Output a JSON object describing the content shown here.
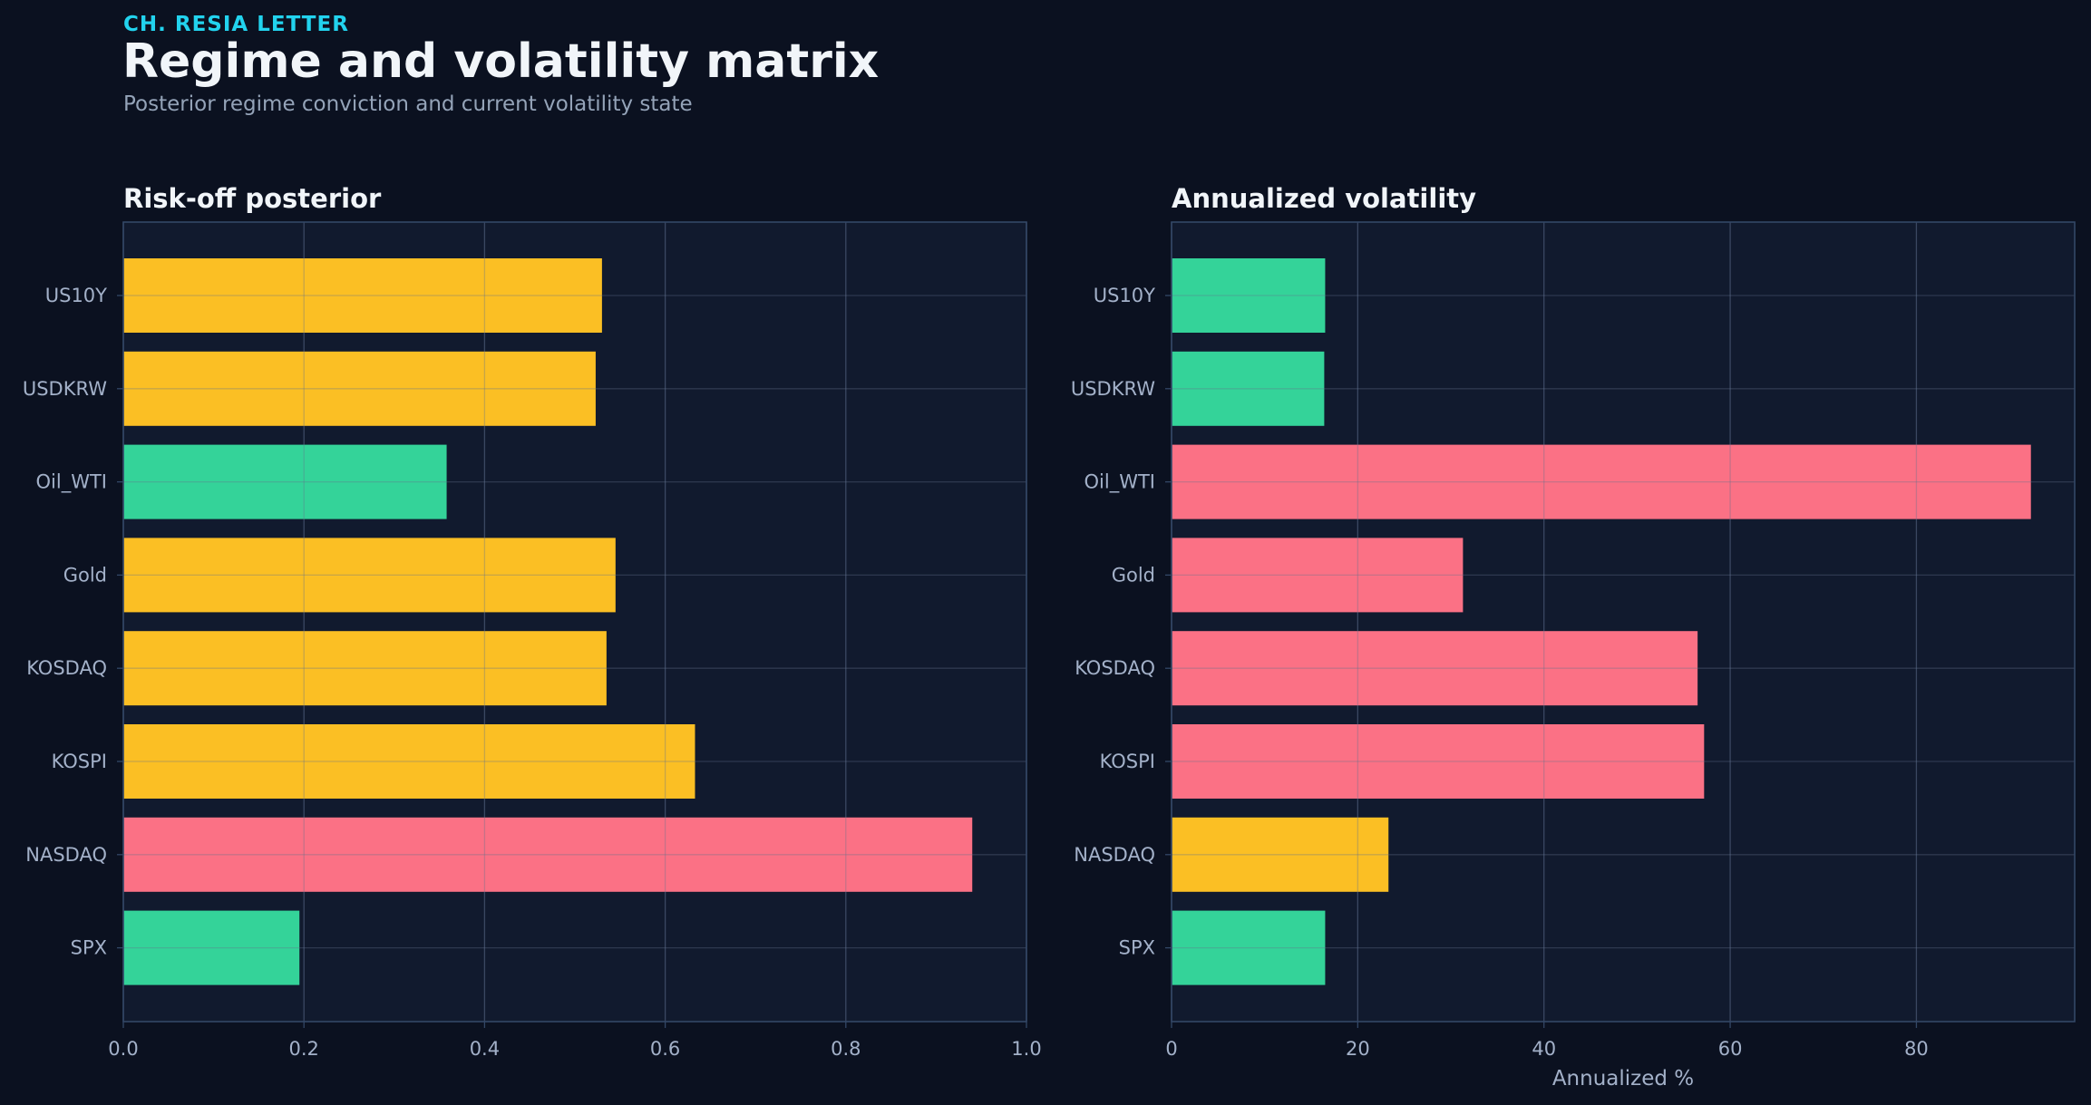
{
  "header": {
    "kicker": "CH. RESIA LETTER",
    "title": "Regime and volatility matrix",
    "subtitle": "Posterior regime conviction and current volatility state"
  },
  "colors": {
    "background": "#0b1120",
    "panel": "#111a2e",
    "frame": "#334766",
    "grid": "#24304a",
    "amber": "#fbbf24",
    "green": "#34d399",
    "pink": "#fb7185"
  },
  "chart_data": [
    {
      "type": "bar",
      "orientation": "horizontal",
      "title": "Risk-off posterior",
      "xlabel": "",
      "ylabel": "",
      "xlim": [
        0,
        1.0
      ],
      "xticks": [
        0.0,
        0.2,
        0.4,
        0.6,
        0.8,
        1.0
      ],
      "xtick_labels": [
        "0.0",
        "0.2",
        "0.4",
        "0.6",
        "0.8",
        "1.0"
      ],
      "grid": true,
      "categories": [
        "US10Y",
        "USDKRW",
        "Oil_WTI",
        "Gold",
        "KOSDAQ",
        "KOSPI",
        "NASDAQ",
        "SPX"
      ],
      "values": [
        0.53,
        0.523,
        0.358,
        0.545,
        0.535,
        0.633,
        0.94,
        0.195
      ],
      "bar_colors": [
        "#fbbf24",
        "#fbbf24",
        "#34d399",
        "#fbbf24",
        "#fbbf24",
        "#fbbf24",
        "#fb7185",
        "#34d399"
      ]
    },
    {
      "type": "bar",
      "orientation": "horizontal",
      "title": "Annualized volatility",
      "xlabel": "Annualized %",
      "ylabel": "",
      "xlim": [
        0,
        97
      ],
      "xticks": [
        0,
        20,
        40,
        60,
        80
      ],
      "xtick_labels": [
        "0",
        "20",
        "40",
        "60",
        "80"
      ],
      "grid": true,
      "categories": [
        "US10Y",
        "USDKRW",
        "Oil_WTI",
        "Gold",
        "KOSDAQ",
        "KOSPI",
        "NASDAQ",
        "SPX"
      ],
      "values": [
        16.5,
        16.4,
        92.3,
        31.3,
        56.5,
        57.2,
        23.3,
        16.5
      ],
      "bar_colors": [
        "#34d399",
        "#34d399",
        "#fb7185",
        "#fb7185",
        "#fb7185",
        "#fb7185",
        "#fbbf24",
        "#34d399"
      ]
    }
  ]
}
